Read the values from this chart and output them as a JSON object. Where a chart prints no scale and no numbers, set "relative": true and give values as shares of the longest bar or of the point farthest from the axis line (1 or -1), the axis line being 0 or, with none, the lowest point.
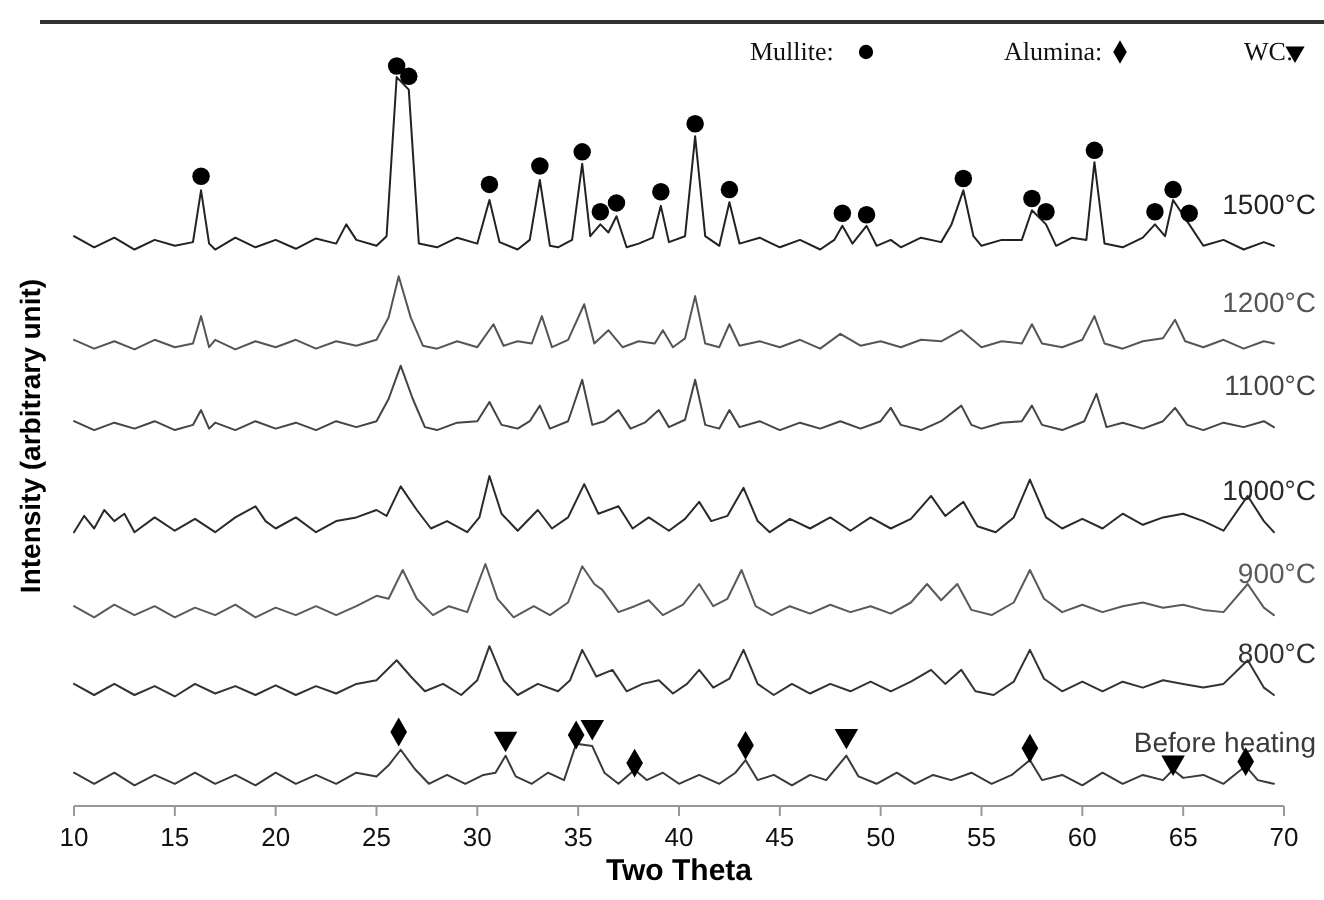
{
  "chart_data": {
    "type": "line",
    "relative": true,
    "xlabel": "Two Theta",
    "ylabel": "Intensity (arbitrary unit)",
    "xlim": [
      10,
      70
    ],
    "xticks": [
      10,
      15,
      20,
      25,
      30,
      35,
      40,
      45,
      50,
      55,
      60,
      65,
      70
    ],
    "legend": "top right",
    "grid": false,
    "series": [
      {
        "name": "1500°C",
        "color": "#222222",
        "x": [
          10,
          11,
          12,
          13,
          14,
          15,
          15.9,
          16.3,
          16.7,
          17,
          18,
          19,
          20,
          21,
          22,
          23,
          23.5,
          24,
          25,
          25.5,
          26.0,
          26.6,
          27.1,
          28,
          29,
          30,
          30.6,
          31.1,
          32,
          32.6,
          33.1,
          33.6,
          34,
          34.7,
          35.2,
          35.6,
          36.1,
          36.5,
          36.9,
          37.4,
          38,
          38.7,
          39.1,
          39.5,
          40.3,
          40.8,
          41.3,
          42,
          42.5,
          43,
          44,
          45,
          46,
          47,
          47.7,
          48.1,
          48.6,
          49.3,
          49.8,
          50.5,
          51,
          52,
          53,
          53.5,
          54.1,
          54.6,
          55,
          56,
          57,
          57.5,
          58.2,
          58.7,
          59.5,
          60.2,
          60.6,
          61.1,
          62,
          63,
          63.6,
          64.1,
          64.5,
          65.3,
          66,
          67,
          68,
          69,
          69.5
        ],
        "values": [
          0.77,
          0.755,
          0.768,
          0.752,
          0.765,
          0.757,
          0.762,
          0.832,
          0.76,
          0.752,
          0.768,
          0.755,
          0.765,
          0.753,
          0.767,
          0.76,
          0.786,
          0.765,
          0.757,
          0.77,
          0.985,
          0.968,
          0.76,
          0.755,
          0.768,
          0.76,
          0.819,
          0.762,
          0.752,
          0.765,
          0.846,
          0.757,
          0.755,
          0.765,
          0.868,
          0.77,
          0.786,
          0.775,
          0.797,
          0.755,
          0.76,
          0.768,
          0.811,
          0.762,
          0.77,
          0.905,
          0.77,
          0.757,
          0.816,
          0.76,
          0.768,
          0.755,
          0.765,
          0.752,
          0.765,
          0.784,
          0.76,
          0.784,
          0.757,
          0.765,
          0.755,
          0.768,
          0.762,
          0.785,
          0.832,
          0.77,
          0.757,
          0.765,
          0.765,
          0.805,
          0.786,
          0.757,
          0.768,
          0.765,
          0.87,
          0.76,
          0.755,
          0.768,
          0.786,
          0.77,
          0.819,
          0.786,
          0.757,
          0.765,
          0.752,
          0.762,
          0.757
        ]
      },
      {
        "name": "1200°C",
        "color": "#555555",
        "x": [
          10,
          11,
          12,
          13,
          14,
          15,
          15.9,
          16.3,
          16.7,
          17,
          18,
          19,
          20,
          21,
          22,
          23,
          24,
          25,
          25.6,
          26.1,
          26.7,
          27.3,
          28,
          29,
          30,
          30.8,
          31.3,
          32,
          32.7,
          33.2,
          33.7,
          34.5,
          35.3,
          35.8,
          36.5,
          37.2,
          38,
          38.8,
          39.2,
          39.7,
          40.3,
          40.8,
          41.3,
          42,
          42.5,
          43,
          44,
          45,
          46,
          47,
          48,
          49,
          50,
          51,
          52,
          53,
          54,
          55,
          56,
          57,
          57.5,
          58,
          59,
          60,
          60.6,
          61.1,
          62,
          63,
          64,
          64.6,
          65.1,
          66,
          67,
          68,
          69,
          69.5
        ],
        "values": [
          0.63,
          0.618,
          0.628,
          0.617,
          0.63,
          0.62,
          0.625,
          0.662,
          0.62,
          0.63,
          0.617,
          0.628,
          0.62,
          0.63,
          0.618,
          0.628,
          0.622,
          0.63,
          0.66,
          0.716,
          0.66,
          0.622,
          0.618,
          0.628,
          0.62,
          0.651,
          0.622,
          0.628,
          0.625,
          0.662,
          0.62,
          0.63,
          0.678,
          0.625,
          0.643,
          0.62,
          0.628,
          0.625,
          0.643,
          0.62,
          0.632,
          0.689,
          0.625,
          0.62,
          0.651,
          0.622,
          0.628,
          0.62,
          0.63,
          0.618,
          0.638,
          0.622,
          0.628,
          0.62,
          0.63,
          0.628,
          0.643,
          0.62,
          0.628,
          0.625,
          0.651,
          0.625,
          0.62,
          0.63,
          0.662,
          0.625,
          0.618,
          0.628,
          0.632,
          0.657,
          0.628,
          0.62,
          0.63,
          0.618,
          0.628,
          0.625
        ]
      },
      {
        "name": "1100°C",
        "color": "#444444",
        "x": [
          10,
          11,
          12,
          13,
          14,
          15,
          15.9,
          16.3,
          16.7,
          17,
          18,
          19,
          20,
          21,
          22,
          23,
          24,
          25,
          25.6,
          26.2,
          26.8,
          27.4,
          28,
          29,
          30,
          30.6,
          31.2,
          32,
          32.6,
          33.1,
          33.6,
          34.5,
          35.2,
          35.7,
          36.3,
          37,
          37.6,
          38.3,
          39,
          39.5,
          40.3,
          40.8,
          41.3,
          42,
          42.5,
          43,
          44,
          45,
          46,
          47,
          48,
          49,
          50,
          50.5,
          51,
          52,
          53,
          54,
          54.5,
          55,
          56,
          57,
          57.5,
          58,
          59,
          60.1,
          60.7,
          61.2,
          62,
          63,
          64,
          64.6,
          65.2,
          66,
          67,
          68,
          69,
          69.5
        ],
        "values": [
          0.52,
          0.508,
          0.518,
          0.51,
          0.52,
          0.508,
          0.515,
          0.535,
          0.51,
          0.518,
          0.508,
          0.52,
          0.51,
          0.518,
          0.508,
          0.52,
          0.512,
          0.52,
          0.55,
          0.595,
          0.55,
          0.512,
          0.508,
          0.518,
          0.52,
          0.546,
          0.515,
          0.51,
          0.52,
          0.541,
          0.51,
          0.52,
          0.576,
          0.515,
          0.52,
          0.535,
          0.51,
          0.518,
          0.535,
          0.512,
          0.522,
          0.576,
          0.515,
          0.51,
          0.535,
          0.512,
          0.52,
          0.508,
          0.518,
          0.51,
          0.52,
          0.51,
          0.52,
          0.538,
          0.515,
          0.508,
          0.52,
          0.541,
          0.515,
          0.51,
          0.518,
          0.52,
          0.541,
          0.515,
          0.508,
          0.52,
          0.557,
          0.512,
          0.518,
          0.51,
          0.52,
          0.538,
          0.515,
          0.508,
          0.518,
          0.512,
          0.52,
          0.512
        ]
      },
      {
        "name": "1000°C",
        "color": "#2a2a2a",
        "x": [
          10,
          10.5,
          11,
          11.5,
          12,
          12.5,
          13,
          14,
          15,
          16,
          17,
          18,
          19,
          19.5,
          20,
          21,
          22,
          23,
          24,
          25,
          25.5,
          26.2,
          27,
          27.7,
          28.5,
          29.5,
          30.1,
          30.6,
          31.2,
          32,
          33,
          33.7,
          34.5,
          35.3,
          36,
          37,
          37.7,
          38.5,
          39.5,
          40.3,
          41,
          41.6,
          42.4,
          43.2,
          43.9,
          44.5,
          45.5,
          46.5,
          47.5,
          48.5,
          49.5,
          50.5,
          51.5,
          52.5,
          53.2,
          54.1,
          54.8,
          55.7,
          56.6,
          57.4,
          58.2,
          59,
          60,
          61,
          62,
          63,
          64,
          65,
          66,
          67,
          68.2,
          69,
          69.5
        ],
        "values": [
          0.37,
          0.392,
          0.375,
          0.4,
          0.385,
          0.395,
          0.37,
          0.39,
          0.372,
          0.388,
          0.37,
          0.39,
          0.405,
          0.385,
          0.375,
          0.39,
          0.37,
          0.385,
          0.39,
          0.4,
          0.392,
          0.432,
          0.4,
          0.375,
          0.385,
          0.37,
          0.39,
          0.446,
          0.395,
          0.372,
          0.4,
          0.375,
          0.39,
          0.435,
          0.395,
          0.405,
          0.375,
          0.39,
          0.372,
          0.388,
          0.411,
          0.385,
          0.392,
          0.43,
          0.385,
          0.37,
          0.388,
          0.375,
          0.39,
          0.372,
          0.39,
          0.375,
          0.388,
          0.419,
          0.392,
          0.411,
          0.378,
          0.37,
          0.39,
          0.441,
          0.39,
          0.375,
          0.388,
          0.375,
          0.395,
          0.38,
          0.39,
          0.395,
          0.385,
          0.372,
          0.419,
          0.385,
          0.37
        ]
      },
      {
        "name": "900°C",
        "color": "#5a5a5a",
        "x": [
          10,
          11,
          12,
          13,
          14,
          15,
          16,
          17,
          18,
          19,
          20,
          21,
          22,
          23,
          24,
          25,
          25.6,
          26.3,
          27,
          27.8,
          28.6,
          29.5,
          30.4,
          31,
          31.8,
          32.8,
          33.6,
          34.5,
          35.2,
          35.8,
          36.2,
          37,
          37.8,
          38.5,
          39.2,
          40.2,
          41,
          41.7,
          42.4,
          43.1,
          43.8,
          44.6,
          45.5,
          46.5,
          47.5,
          48.5,
          49.5,
          50.5,
          51.5,
          52.3,
          53,
          53.8,
          54.5,
          55.5,
          56.6,
          57.4,
          58.1,
          59,
          60,
          61,
          62,
          63,
          64,
          65,
          66,
          67,
          68.2,
          69,
          69.5
        ],
        "values": [
          0.27,
          0.255,
          0.272,
          0.258,
          0.27,
          0.255,
          0.268,
          0.258,
          0.272,
          0.255,
          0.268,
          0.258,
          0.27,
          0.258,
          0.27,
          0.284,
          0.28,
          0.319,
          0.28,
          0.258,
          0.27,
          0.262,
          0.327,
          0.28,
          0.255,
          0.27,
          0.258,
          0.275,
          0.324,
          0.3,
          0.292,
          0.262,
          0.27,
          0.278,
          0.258,
          0.272,
          0.3,
          0.27,
          0.28,
          0.319,
          0.27,
          0.258,
          0.27,
          0.26,
          0.272,
          0.262,
          0.27,
          0.26,
          0.275,
          0.3,
          0.278,
          0.3,
          0.265,
          0.258,
          0.275,
          0.319,
          0.28,
          0.262,
          0.272,
          0.262,
          0.27,
          0.275,
          0.268,
          0.272,
          0.265,
          0.262,
          0.3,
          0.268,
          0.258
        ]
      },
      {
        "name": "800°C",
        "color": "#333333",
        "x": [
          10,
          11,
          12,
          13,
          14,
          15,
          16,
          17,
          18,
          19,
          20,
          21,
          22,
          23,
          24,
          25,
          26,
          26.7,
          27.4,
          28.3,
          29.2,
          30,
          30.6,
          31.3,
          32,
          33,
          34,
          34.6,
          35.2,
          35.9,
          36.7,
          37.4,
          38.2,
          39,
          39.7,
          40.4,
          41,
          41.7,
          42.5,
          43.2,
          43.9,
          44.7,
          45.6,
          46.5,
          47.5,
          48.5,
          49.5,
          50.5,
          51.5,
          52.5,
          53.2,
          54,
          54.7,
          55.6,
          56.6,
          57.4,
          58.1,
          59,
          60,
          61,
          62,
          63,
          64,
          65,
          66,
          67,
          68.2,
          69,
          69.5
        ],
        "values": [
          0.165,
          0.15,
          0.165,
          0.15,
          0.162,
          0.148,
          0.165,
          0.152,
          0.162,
          0.15,
          0.163,
          0.15,
          0.162,
          0.152,
          0.165,
          0.17,
          0.197,
          0.175,
          0.155,
          0.165,
          0.15,
          0.17,
          0.216,
          0.17,
          0.15,
          0.165,
          0.155,
          0.17,
          0.211,
          0.175,
          0.184,
          0.155,
          0.165,
          0.17,
          0.152,
          0.165,
          0.184,
          0.16,
          0.172,
          0.211,
          0.165,
          0.15,
          0.165,
          0.152,
          0.165,
          0.155,
          0.168,
          0.155,
          0.168,
          0.184,
          0.165,
          0.184,
          0.155,
          0.15,
          0.168,
          0.211,
          0.172,
          0.155,
          0.168,
          0.155,
          0.168,
          0.16,
          0.17,
          0.165,
          0.16,
          0.165,
          0.197,
          0.16,
          0.15
        ]
      },
      {
        "name": "Before heating",
        "color": "#3a3a3a",
        "x": [
          10,
          11,
          12,
          13,
          14,
          15,
          16,
          17,
          18,
          19,
          20,
          21,
          22,
          23,
          24,
          25,
          25.6,
          26.2,
          26.9,
          27.6,
          28.5,
          29.4,
          30.3,
          30.9,
          31.4,
          31.9,
          32.7,
          33.5,
          34.3,
          34.9,
          35.7,
          36.3,
          37,
          37.8,
          38.4,
          39.2,
          40,
          41,
          42,
          42.8,
          43.3,
          43.9,
          44.7,
          45.6,
          46.5,
          47.3,
          48.3,
          48.9,
          49.8,
          50.8,
          51.7,
          52.6,
          53.5,
          54.5,
          55.5,
          56.5,
          57.4,
          58,
          59,
          60,
          61,
          62,
          63,
          64,
          64.5,
          65,
          66,
          67,
          68.1,
          68.7,
          69.5
        ],
        "values": [
          0.045,
          0.03,
          0.045,
          0.028,
          0.042,
          0.03,
          0.045,
          0.03,
          0.042,
          0.028,
          0.045,
          0.03,
          0.042,
          0.03,
          0.045,
          0.04,
          0.055,
          0.076,
          0.05,
          0.03,
          0.042,
          0.03,
          0.042,
          0.045,
          0.068,
          0.04,
          0.03,
          0.045,
          0.035,
          0.084,
          0.081,
          0.045,
          0.03,
          0.049,
          0.035,
          0.045,
          0.03,
          0.042,
          0.03,
          0.045,
          0.062,
          0.035,
          0.042,
          0.028,
          0.042,
          0.035,
          0.068,
          0.04,
          0.03,
          0.045,
          0.03,
          0.042,
          0.035,
          0.045,
          0.03,
          0.042,
          0.062,
          0.035,
          0.042,
          0.028,
          0.045,
          0.03,
          0.042,
          0.035,
          0.049,
          0.038,
          0.042,
          0.03,
          0.054,
          0.035,
          0.03
        ]
      },
      {
        "type": "scatter",
        "name": "Mullite:",
        "marker": "circle",
        "color": "#000000",
        "x": [
          16.3,
          26.0,
          26.6,
          30.6,
          33.1,
          35.2,
          36.1,
          36.9,
          39.1,
          40.8,
          42.5,
          48.1,
          49.3,
          54.1,
          57.5,
          58.2,
          60.6,
          63.6,
          64.5,
          65.3
        ],
        "values": [
          0.851,
          1.0,
          0.986,
          0.84,
          0.865,
          0.884,
          0.803,
          0.815,
          0.83,
          0.922,
          0.833,
          0.801,
          0.799,
          0.848,
          0.821,
          0.803,
          0.886,
          0.803,
          0.833,
          0.801
        ]
      },
      {
        "type": "scatter",
        "name": "Alumina:",
        "marker": "diamond",
        "color": "#000000",
        "x": [
          26.1,
          34.9,
          37.8,
          43.3,
          57.4,
          68.1
        ],
        "values": [
          0.1,
          0.096,
          0.058,
          0.082,
          0.078,
          0.06
        ]
      },
      {
        "type": "scatter",
        "name": "WC:",
        "marker": "triangle",
        "color": "#000000",
        "x": [
          31.4,
          35.7,
          48.3,
          64.5
        ],
        "values": [
          0.091,
          0.107,
          0.095,
          0.059
        ]
      }
    ]
  }
}
